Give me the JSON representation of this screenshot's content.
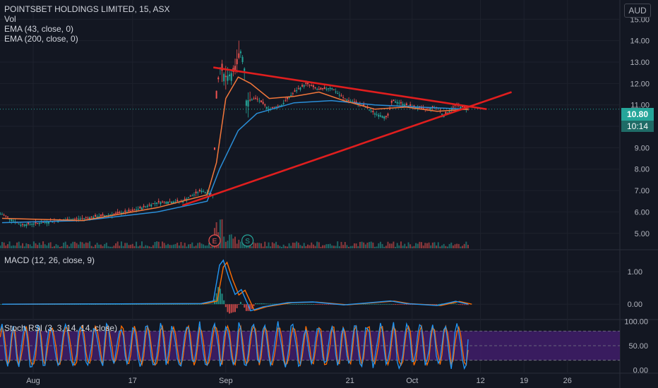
{
  "header": {
    "symbol_line": "POINTSBET HOLDINGS LIMITED, 15, ASX",
    "vol_label": "Vol",
    "ema_fast_label": "EMA (43, close, 0)",
    "ema_slow_label": "EMA (200, close, 0)",
    "currency": "AUD"
  },
  "panes": {
    "macd_label": "MACD (12, 26, close, 9)",
    "stoch_label": "Stoch RSI (3, 3, 14, 14, close)"
  },
  "price_tags": {
    "last_price": "10.80",
    "countdown": "10:14"
  },
  "markers": {
    "earnings": "E",
    "split": "S"
  },
  "colors": {
    "background": "#131722",
    "grid": "#1e222d",
    "up": "#26a69a",
    "down": "#ef5350",
    "ema_fast": "#f4773b",
    "ema_slow": "#2a8ed8",
    "trendline": "#e01e1e",
    "macd_line": "#2196f3",
    "signal_line": "#ff6d00",
    "stoch_k": "#2196f3",
    "stoch_d": "#ff6d00",
    "stoch_band": "#3e1d66",
    "price_tag": "#26a69a"
  },
  "chart_data": {
    "type": "candlestick",
    "x_axis": {
      "ticks": [
        {
          "label": "Aug",
          "day": 0
        },
        {
          "label": "17",
          "day": 16
        },
        {
          "label": "Sep",
          "day": 31
        },
        {
          "label": "21",
          "day": 51
        },
        {
          "label": "Oct",
          "day": 61
        },
        {
          "label": "12",
          "day": 72
        },
        {
          "label": "19",
          "day": 79
        },
        {
          "label": "26",
          "day": 86
        }
      ]
    },
    "price_axis": {
      "range": [
        4.3,
        15.9
      ],
      "ticks": [
        5.0,
        6.0,
        7.0,
        8.0,
        9.0,
        10.0,
        11.0,
        12.0,
        13.0,
        14.0,
        15.0
      ],
      "tick_labels": [
        "5.00",
        "6.00",
        "7.00",
        "8.00",
        "9.00",
        "10.00",
        "11.00",
        "12.00",
        "13.00",
        "14.00",
        "15.00"
      ]
    },
    "price_points": [
      {
        "day": -5,
        "close": 5.9
      },
      {
        "day": -2,
        "close": 5.4
      },
      {
        "day": 0,
        "close": 5.45
      },
      {
        "day": 4,
        "close": 5.6
      },
      {
        "day": 8,
        "close": 5.7
      },
      {
        "day": 12,
        "close": 5.85
      },
      {
        "day": 16,
        "close": 6.05
      },
      {
        "day": 20,
        "close": 6.45
      },
      {
        "day": 24,
        "close": 6.5
      },
      {
        "day": 27,
        "close": 7.0
      },
      {
        "day": 29,
        "close": 6.8
      },
      {
        "day": 29.4,
        "close": 11.0
      },
      {
        "day": 30,
        "close": 12.8
      },
      {
        "day": 31,
        "close": 12.3
      },
      {
        "day": 32.5,
        "close": 12.6
      },
      {
        "day": 33.5,
        "close": 13.6
      },
      {
        "day": 34,
        "close": 12.7
      },
      {
        "day": 34.2,
        "close": 11.2
      },
      {
        "day": 36,
        "close": 11.3
      },
      {
        "day": 38,
        "close": 10.8
      },
      {
        "day": 40,
        "close": 11.0
      },
      {
        "day": 42,
        "close": 11.6
      },
      {
        "day": 44,
        "close": 12.0
      },
      {
        "day": 46,
        "close": 11.7
      },
      {
        "day": 48,
        "close": 11.8
      },
      {
        "day": 50,
        "close": 11.3
      },
      {
        "day": 53,
        "close": 11.0
      },
      {
        "day": 55,
        "close": 10.6
      },
      {
        "day": 57,
        "close": 10.4
      },
      {
        "day": 57.8,
        "close": 11.2
      },
      {
        "day": 60,
        "close": 11.0
      },
      {
        "day": 63,
        "close": 10.8
      },
      {
        "day": 65,
        "close": 10.9
      },
      {
        "day": 66,
        "close": 10.5
      },
      {
        "day": 67,
        "close": 10.7
      },
      {
        "day": 68,
        "close": 11.0
      },
      {
        "day": 70,
        "close": 10.8
      }
    ],
    "ema_43": [
      {
        "day": -5,
        "value": 5.7
      },
      {
        "day": 8,
        "value": 5.6
      },
      {
        "day": 20,
        "value": 6.2
      },
      {
        "day": 28,
        "value": 6.8
      },
      {
        "day": 29.5,
        "value": 8.3
      },
      {
        "day": 31,
        "value": 11.3
      },
      {
        "day": 33,
        "value": 12.3
      },
      {
        "day": 35,
        "value": 12.0
      },
      {
        "day": 38,
        "value": 11.3
      },
      {
        "day": 42,
        "value": 11.4
      },
      {
        "day": 46,
        "value": 11.6
      },
      {
        "day": 50,
        "value": 11.2
      },
      {
        "day": 55,
        "value": 10.8
      },
      {
        "day": 60,
        "value": 10.9
      },
      {
        "day": 65,
        "value": 10.7
      },
      {
        "day": 70,
        "value": 10.8
      }
    ],
    "ema_200": [
      {
        "day": -5,
        "value": 5.5
      },
      {
        "day": 8,
        "value": 5.6
      },
      {
        "day": 20,
        "value": 6.0
      },
      {
        "day": 28,
        "value": 6.5
      },
      {
        "day": 30,
        "value": 8.0
      },
      {
        "day": 33,
        "value": 9.8
      },
      {
        "day": 36,
        "value": 10.6
      },
      {
        "day": 42,
        "value": 11.1
      },
      {
        "day": 48,
        "value": 11.2
      },
      {
        "day": 55,
        "value": 11.0
      },
      {
        "day": 62,
        "value": 10.9
      },
      {
        "day": 70,
        "value": 10.8
      }
    ],
    "trendlines": [
      {
        "name": "resistance",
        "from": {
          "day": 29,
          "value": 12.75
        },
        "to": {
          "day": 73,
          "value": 10.8
        }
      },
      {
        "name": "support",
        "from": {
          "day": 24,
          "value": 6.3
        },
        "to": {
          "day": 77,
          "value": 11.6
        }
      }
    ],
    "last_price": 10.8,
    "macd": {
      "range": [
        -0.45,
        1.5
      ],
      "ticks": [
        0.0,
        1.0
      ],
      "tick_labels": [
        "0.00",
        "1.00"
      ],
      "macd_line": [
        {
          "day": -5,
          "value": 0.0
        },
        {
          "day": 27,
          "value": 0.02
        },
        {
          "day": 29,
          "value": 0.1
        },
        {
          "day": 30,
          "value": 1.2
        },
        {
          "day": 30.6,
          "value": 1.35
        },
        {
          "day": 31.5,
          "value": 0.8
        },
        {
          "day": 32.5,
          "value": 0.3
        },
        {
          "day": 33.5,
          "value": 0.45
        },
        {
          "day": 35,
          "value": -0.2
        },
        {
          "day": 37,
          "value": -0.08
        },
        {
          "day": 41,
          "value": 0.05
        },
        {
          "day": 45,
          "value": 0.07
        },
        {
          "day": 50,
          "value": -0.02
        },
        {
          "day": 57.5,
          "value": 0.1
        },
        {
          "day": 60,
          "value": 0.02
        },
        {
          "day": 65,
          "value": -0.04
        },
        {
          "day": 68,
          "value": 0.09
        },
        {
          "day": 70,
          "value": 0.0
        }
      ]
    },
    "stoch_rsi": {
      "range": [
        -5,
        102
      ],
      "ticks": [
        0,
        50,
        100
      ],
      "tick_labels": [
        "0.00",
        "50.00",
        "100.00"
      ],
      "band": [
        20,
        80
      ]
    },
    "markers": [
      {
        "label": "E",
        "day": 29.2
      },
      {
        "label": "S",
        "day": 34.5
      }
    ]
  }
}
